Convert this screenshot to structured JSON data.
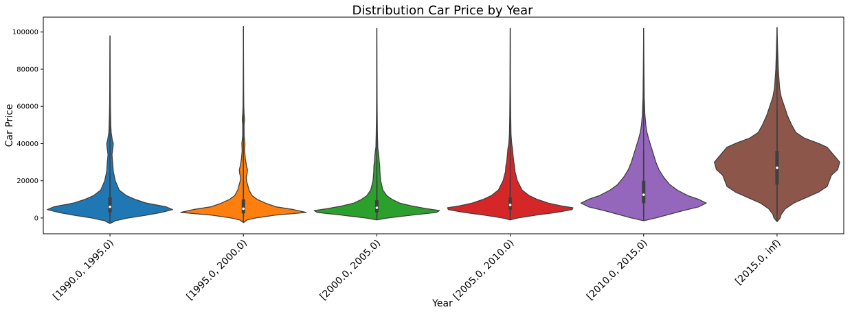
{
  "chart_data": {
    "type": "violin",
    "title": "Distribution Car Price by Year",
    "xlabel": "Year",
    "ylabel": "Car Price",
    "ylim": [
      -8500,
      108000
    ],
    "yticks": [
      0,
      20000,
      40000,
      60000,
      80000,
      100000
    ],
    "ytick_labels": [
      "0",
      "20000",
      "40000",
      "60000",
      "80000",
      "100000"
    ],
    "grid": false,
    "legend": "none",
    "categories": [
      "[1990.0, 1995.0)",
      "[1995.0, 2000.0)",
      "[2000.0, 2005.0)",
      "[2005.0, 2010.0)",
      "[2010.0, 2015.0)",
      "[2015.0, inf)"
    ],
    "series": [
      {
        "color": "#1f77b4",
        "min": -3000,
        "max": 98000,
        "q1": 3000,
        "median": 6000,
        "q3": 11000,
        "whisker_low": 500,
        "whisker_high": 24000,
        "profile": [
          [
            -3000,
            0
          ],
          [
            -1500,
            0.08
          ],
          [
            0,
            0.28
          ],
          [
            1500,
            0.55
          ],
          [
            3000,
            0.78
          ],
          [
            4500,
            0.95
          ],
          [
            6000,
            0.85
          ],
          [
            8000,
            0.55
          ],
          [
            10000,
            0.38
          ],
          [
            12000,
            0.25
          ],
          [
            15000,
            0.14
          ],
          [
            20000,
            0.08
          ],
          [
            25000,
            0.05
          ],
          [
            30000,
            0.04
          ],
          [
            34000,
            0.03
          ],
          [
            38000,
            0.045
          ],
          [
            40000,
            0.05
          ],
          [
            42000,
            0.035
          ],
          [
            46000,
            0.018
          ],
          [
            50000,
            0.012
          ],
          [
            60000,
            0.006
          ],
          [
            70000,
            0.004
          ],
          [
            80000,
            0.003
          ],
          [
            98000,
            0
          ]
        ]
      },
      {
        "color": "#ff7f0e",
        "min": -2500,
        "max": 103000,
        "q1": 2500,
        "median": 5000,
        "q3": 10000,
        "whisker_low": 500,
        "whisker_high": 20000,
        "profile": [
          [
            -2500,
            0
          ],
          [
            -1000,
            0.06
          ],
          [
            0,
            0.2
          ],
          [
            1500,
            0.5
          ],
          [
            3000,
            1.0
          ],
          [
            4500,
            0.8
          ],
          [
            6000,
            0.52
          ],
          [
            8000,
            0.35
          ],
          [
            10000,
            0.22
          ],
          [
            12000,
            0.14
          ],
          [
            15000,
            0.09
          ],
          [
            20000,
            0.05
          ],
          [
            22000,
            0.045
          ],
          [
            24000,
            0.06
          ],
          [
            26000,
            0.065
          ],
          [
            28000,
            0.05
          ],
          [
            32000,
            0.03
          ],
          [
            36000,
            0.02
          ],
          [
            40000,
            0.025
          ],
          [
            44000,
            0.012
          ],
          [
            50000,
            0.01
          ],
          [
            53000,
            0.018
          ],
          [
            56000,
            0.01
          ],
          [
            60000,
            0.006
          ],
          [
            70000,
            0.004
          ],
          [
            80000,
            0.003
          ],
          [
            103000,
            0
          ]
        ]
      },
      {
        "color": "#2ca02c",
        "min": -1000,
        "max": 102000,
        "q1": 3000,
        "median": 5500,
        "q3": 9500,
        "whisker_low": 500,
        "whisker_high": 20000,
        "profile": [
          [
            -1000,
            0
          ],
          [
            0,
            0.15
          ],
          [
            1500,
            0.45
          ],
          [
            3000,
            0.78
          ],
          [
            4000,
            0.82
          ],
          [
            5000,
            0.65
          ],
          [
            6500,
            0.45
          ],
          [
            8000,
            0.3
          ],
          [
            10000,
            0.2
          ],
          [
            12000,
            0.13
          ],
          [
            15000,
            0.08
          ],
          [
            20000,
            0.05
          ],
          [
            25000,
            0.04
          ],
          [
            28000,
            0.038
          ],
          [
            31000,
            0.03
          ],
          [
            34000,
            0.025
          ],
          [
            38000,
            0.012
          ],
          [
            45000,
            0.008
          ],
          [
            55000,
            0.005
          ],
          [
            65000,
            0.003
          ],
          [
            80000,
            0.002
          ],
          [
            102000,
            0
          ]
        ]
      },
      {
        "color": "#d62728",
        "min": -1000,
        "max": 102000,
        "q1": 4500,
        "median": 7000,
        "q3": 11000,
        "whisker_low": 500,
        "whisker_high": 21000,
        "profile": [
          [
            -1000,
            0
          ],
          [
            0,
            0.1
          ],
          [
            1500,
            0.32
          ],
          [
            3000,
            0.58
          ],
          [
            4500,
            0.78
          ],
          [
            5500,
            0.79
          ],
          [
            6500,
            0.64
          ],
          [
            8000,
            0.48
          ],
          [
            10000,
            0.34
          ],
          [
            12000,
            0.24
          ],
          [
            15000,
            0.15
          ],
          [
            20000,
            0.09
          ],
          [
            25000,
            0.06
          ],
          [
            28000,
            0.055
          ],
          [
            30000,
            0.045
          ],
          [
            34000,
            0.035
          ],
          [
            37000,
            0.03
          ],
          [
            40000,
            0.018
          ],
          [
            45000,
            0.01
          ],
          [
            55000,
            0.006
          ],
          [
            70000,
            0.003
          ],
          [
            85000,
            0.002
          ],
          [
            102000,
            0
          ]
        ]
      },
      {
        "color": "#9467bd",
        "min": -1500,
        "max": 102000,
        "q1": 8000,
        "median": 12500,
        "q3": 20000,
        "whisker_low": 500,
        "whisker_high": 36000,
        "profile": [
          [
            -1500,
            0
          ],
          [
            0,
            0.08
          ],
          [
            2000,
            0.17
          ],
          [
            4000,
            0.26
          ],
          [
            6000,
            0.36
          ],
          [
            8000,
            0.41
          ],
          [
            10000,
            0.36
          ],
          [
            12000,
            0.29
          ],
          [
            15000,
            0.22
          ],
          [
            18000,
            0.17
          ],
          [
            22000,
            0.13
          ],
          [
            26000,
            0.1
          ],
          [
            30000,
            0.08
          ],
          [
            34000,
            0.065
          ],
          [
            38000,
            0.05
          ],
          [
            42000,
            0.035
          ],
          [
            46000,
            0.022
          ],
          [
            50000,
            0.014
          ],
          [
            56000,
            0.008
          ],
          [
            65000,
            0.004
          ],
          [
            80000,
            0.002
          ],
          [
            102000,
            0
          ]
        ]
      },
      {
        "color": "#8c564b",
        "min": -2000,
        "max": 102500,
        "q1": 18000,
        "median": 27000,
        "q3": 36000,
        "whisker_low": 2000,
        "whisker_high": 58000,
        "profile": [
          [
            -2000,
            0
          ],
          [
            0,
            0.015
          ],
          [
            2000,
            0.02
          ],
          [
            5000,
            0.04
          ],
          [
            8000,
            0.08
          ],
          [
            11000,
            0.14
          ],
          [
            14000,
            0.2
          ],
          [
            17000,
            0.24
          ],
          [
            20000,
            0.25
          ],
          [
            23000,
            0.26
          ],
          [
            26000,
            0.29
          ],
          [
            30000,
            0.3
          ],
          [
            34000,
            0.27
          ],
          [
            38000,
            0.24
          ],
          [
            40000,
            0.2
          ],
          [
            43000,
            0.13
          ],
          [
            46000,
            0.09
          ],
          [
            50000,
            0.07
          ],
          [
            55000,
            0.05
          ],
          [
            60000,
            0.035
          ],
          [
            65000,
            0.02
          ],
          [
            70000,
            0.012
          ],
          [
            80000,
            0.006
          ],
          [
            90000,
            0.003
          ],
          [
            102500,
            0
          ]
        ]
      }
    ]
  }
}
